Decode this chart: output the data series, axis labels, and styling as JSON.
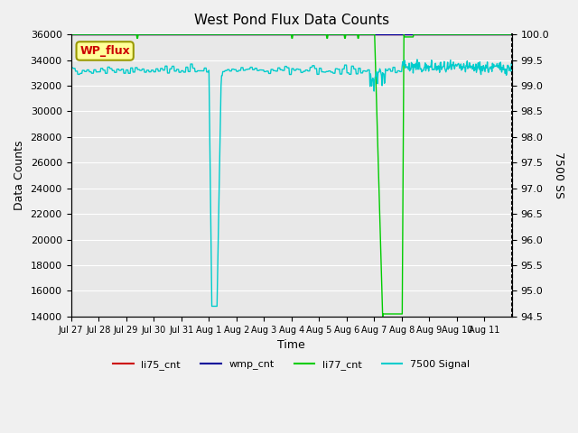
{
  "title": "West Pond Flux Data Counts",
  "xlabel": "Time",
  "ylabel_left": "Data Counts",
  "ylabel_right": "7500 SS",
  "annotation_text": "WP_flux",
  "annotation_color": "#cc0000",
  "annotation_bg": "#ffff99",
  "annotation_border": "#999900",
  "ylim_left": [
    14000,
    36000
  ],
  "ylim_right": [
    94.5,
    100.0
  ],
  "yticks_left": [
    14000,
    16000,
    18000,
    20000,
    22000,
    24000,
    26000,
    28000,
    30000,
    32000,
    34000,
    36000
  ],
  "yticks_right": [
    94.5,
    95.0,
    95.5,
    96.0,
    96.5,
    97.0,
    97.5,
    98.0,
    98.5,
    99.0,
    99.5,
    100.0
  ],
  "xtick_labels": [
    "Jul 27",
    "Jul 28",
    "Jul 29",
    "Jul 30",
    "Jul 31",
    "Aug 1",
    "Aug 2",
    "Aug 3",
    "Aug 4",
    "Aug 5",
    "Aug 6",
    "Aug 7",
    "Aug 8",
    "Aug 9",
    "Aug 10",
    "Aug 11"
  ],
  "bg_color": "#e8e8e8",
  "grid_color": "#ffffff",
  "line_colors": {
    "li75_cnt": "#cc0000",
    "wmp_cnt": "#000099",
    "li77_cnt": "#00cc00",
    "signal_7500": "#00cccc"
  },
  "legend_labels": [
    "li75_cnt",
    "wmp_cnt",
    "li77_cnt",
    "7500 Signal"
  ]
}
